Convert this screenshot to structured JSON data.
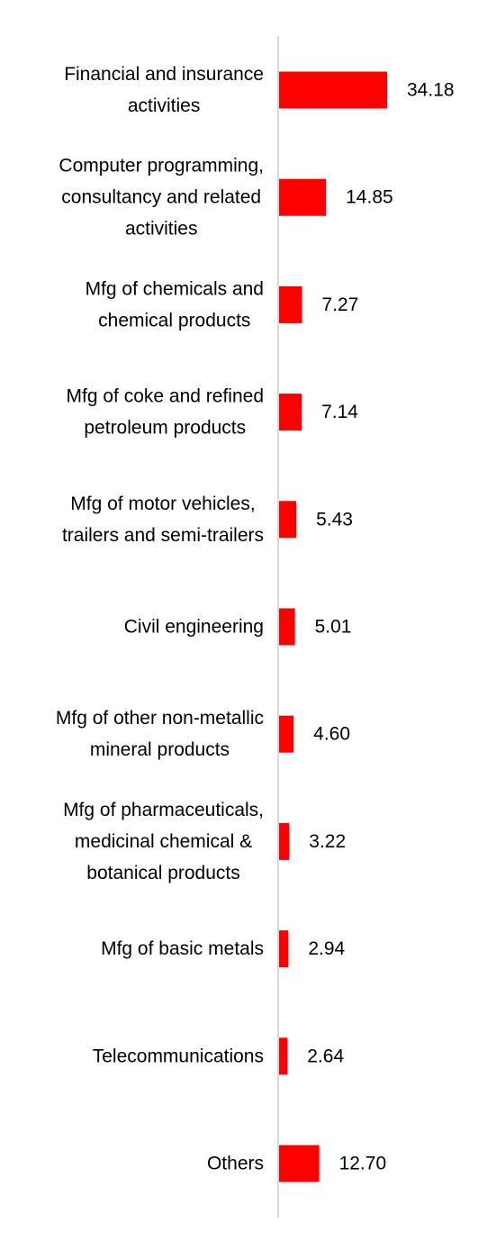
{
  "chart_data": {
    "type": "bar",
    "orientation": "horizontal",
    "categories": [
      [
        "Financial and insurance",
        "activities"
      ],
      [
        "Computer programming,",
        "consultancy and related",
        "activities"
      ],
      [
        "Mfg of chemicals and",
        "chemical products"
      ],
      [
        "Mfg of coke and refined",
        "petroleum products"
      ],
      [
        "Mfg of motor vehicles,",
        "trailers and semi-trailers"
      ],
      [
        "Civil engineering"
      ],
      [
        "Mfg of other non-metallic",
        "mineral products"
      ],
      [
        "Mfg of pharmaceuticals,",
        "medicinal chemical &",
        "botanical products"
      ],
      [
        "Mfg of basic metals"
      ],
      [
        "Telecommunications"
      ],
      [
        "Others"
      ]
    ],
    "values": [
      34.18,
      14.85,
      7.27,
      7.14,
      5.43,
      5.01,
      4.6,
      3.22,
      2.94,
      2.64,
      12.7
    ],
    "value_labels": [
      "34.18",
      "14.85",
      "7.27",
      "7.14",
      "5.43",
      "5.01",
      "4.60",
      "3.22",
      "2.94",
      "2.64",
      "12.70"
    ],
    "bar_color": "#ff0000",
    "axis_color": "#d9d9d9",
    "text_color": "#000000",
    "grid": false,
    "legend": "none"
  }
}
